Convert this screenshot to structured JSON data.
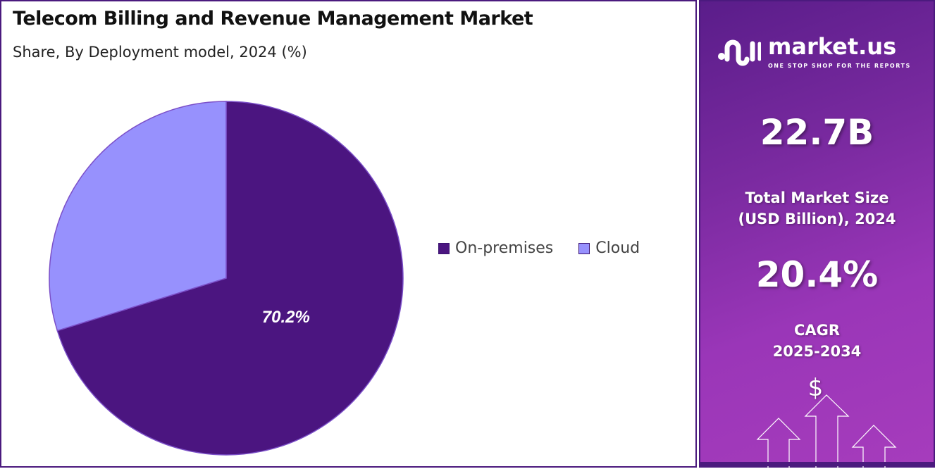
{
  "header": {
    "title": "Telecom Billing and Revenue Management  Market",
    "subtitle": "Share, By Deployment model, 2024 (%)"
  },
  "chart_data": {
    "type": "pie",
    "title": "Telecom Billing and Revenue Management Market",
    "subtitle": "Share, By Deployment model, 2024 (%)",
    "categories": [
      "On-premises",
      "Cloud"
    ],
    "values": [
      70.2,
      29.8
    ],
    "colors": [
      "#4b1580",
      "#9791fd"
    ],
    "data_labels": [
      "70.2%",
      ""
    ],
    "legend_placement": "right"
  },
  "sidebar": {
    "brand": "market.us",
    "tagline": "ONE STOP SHOP FOR THE REPORTS",
    "market_size": "22.7B",
    "market_size_label_1": "Total Market Size",
    "market_size_label_2": "(USD Billion), 2024",
    "cagr": "20.4%",
    "cagr_label_1": "CAGR",
    "cagr_label_2": "2025-2034",
    "currency_symbol": "$"
  }
}
